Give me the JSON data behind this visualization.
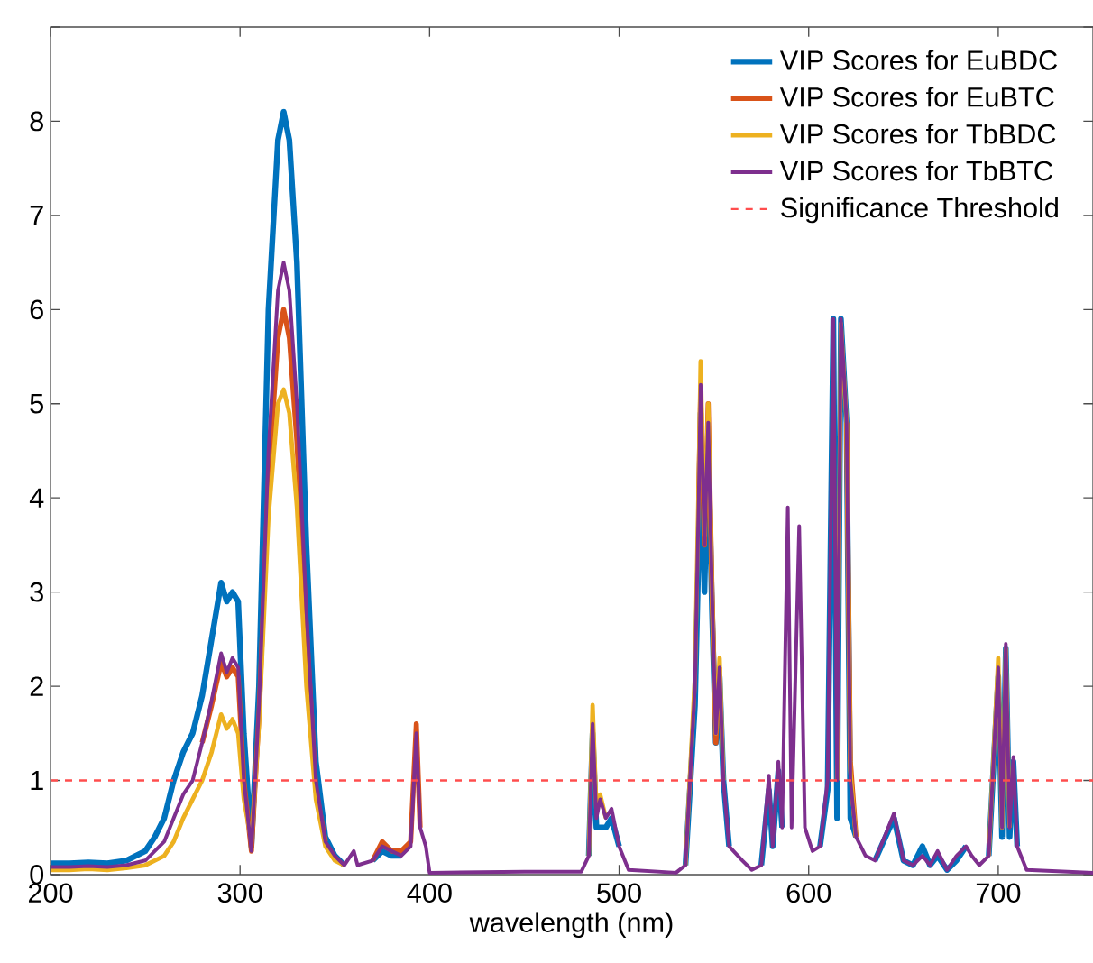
{
  "chart_data": {
    "type": "line",
    "xlabel": "wavelength (nm)",
    "x": [
      200,
      210,
      220,
      230,
      240,
      250,
      255,
      260,
      265,
      270,
      275,
      280,
      285,
      290,
      293,
      296,
      299,
      302,
      306,
      310,
      315,
      320,
      323,
      326,
      330,
      335,
      340,
      345,
      350,
      355,
      360,
      362,
      370,
      375,
      380,
      385,
      390,
      393,
      395,
      398,
      400,
      450,
      480,
      484,
      486,
      488,
      490,
      493,
      496,
      500,
      505,
      530,
      535,
      540,
      542,
      543,
      545,
      547,
      549,
      551,
      553,
      555,
      558,
      565,
      570,
      575,
      579,
      581,
      584,
      586,
      589,
      591,
      595,
      598,
      602,
      606,
      610,
      613,
      615,
      617,
      620,
      622,
      625,
      630,
      635,
      645,
      650,
      655,
      660,
      664,
      668,
      673,
      678,
      683,
      686,
      690,
      695,
      700,
      702,
      704,
      706,
      708,
      710,
      715,
      750
    ],
    "series": [
      {
        "name": "VIP Scores for EuBDC",
        "color": "#0072bd",
        "values": [
          0.12,
          0.12,
          0.13,
          0.12,
          0.15,
          0.25,
          0.4,
          0.6,
          1.0,
          1.3,
          1.5,
          1.9,
          2.5,
          3.1,
          2.9,
          3.0,
          2.9,
          1.5,
          0.3,
          2.0,
          6.0,
          7.8,
          8.1,
          7.8,
          6.5,
          3.5,
          1.2,
          0.4,
          0.2,
          0.1,
          null,
          null,
          0.15,
          0.25,
          0.2,
          0.2,
          null,
          null,
          null,
          null,
          null,
          null,
          null,
          0.2,
          1.5,
          0.5,
          0.5,
          0.5,
          0.6,
          0.3,
          null,
          null,
          0.1,
          1.8,
          3.5,
          4.9,
          3.0,
          4.6,
          2.8,
          1.4,
          2.1,
          1.0,
          0.3,
          null,
          null,
          0.1,
          0.9,
          0.3,
          1.1,
          0.5,
          null,
          null,
          null,
          null,
          null,
          0.3,
          0.9,
          5.9,
          0.6,
          5.9,
          4.8,
          0.6,
          0.4,
          null,
          0.15,
          0.6,
          0.15,
          0.1,
          0.3,
          0.1,
          0.2,
          0.05,
          0.15,
          0.3,
          null,
          null,
          0.2,
          2.1,
          0.4,
          2.4,
          0.4,
          1.2,
          0.3,
          null,
          null
        ]
      },
      {
        "name": "VIP Scores for EuBTC",
        "color": "#d95319",
        "values": [
          null,
          null,
          null,
          null,
          null,
          null,
          null,
          null,
          null,
          null,
          null,
          1.4,
          1.8,
          2.25,
          2.1,
          2.2,
          2.1,
          1.0,
          0.25,
          1.7,
          4.2,
          5.7,
          6.0,
          5.7,
          4.6,
          2.6,
          0.9,
          0.35,
          null,
          null,
          null,
          null,
          0.15,
          0.35,
          0.25,
          0.25,
          0.35,
          1.6,
          0.5,
          null,
          null,
          null,
          null,
          null,
          null,
          null,
          null,
          null,
          null,
          null,
          null,
          null,
          null,
          null,
          4.0,
          5.1,
          3.5,
          5.0,
          3.0,
          1.4,
          2.2,
          null,
          null,
          null,
          null,
          null,
          null,
          null,
          null,
          null,
          null,
          null,
          null,
          null,
          null,
          null,
          null,
          null,
          null,
          null,
          4.8,
          1.2,
          0.4,
          null,
          null,
          null,
          null,
          null,
          null,
          null,
          null,
          null,
          null,
          null,
          null,
          null,
          null,
          null,
          null,
          null,
          null,
          null,
          null,
          null,
          null
        ]
      },
      {
        "name": "VIP Scores for TbBDC",
        "color": "#edb120",
        "values": [
          0.05,
          0.05,
          0.06,
          0.05,
          0.07,
          0.1,
          0.15,
          0.2,
          0.35,
          0.6,
          0.8,
          1.0,
          1.3,
          1.7,
          1.55,
          1.65,
          1.5,
          0.8,
          0.35,
          1.6,
          3.8,
          5.0,
          5.15,
          4.9,
          3.9,
          2.0,
          0.8,
          0.3,
          0.15,
          0.1,
          null,
          null,
          null,
          null,
          null,
          null,
          null,
          null,
          null,
          null,
          null,
          null,
          null,
          0.2,
          1.8,
          0.7,
          0.85,
          0.6,
          null,
          null,
          null,
          null,
          0.1,
          2.1,
          4.2,
          5.45,
          3.6,
          5.0,
          3.0,
          1.5,
          2.3,
          1.0,
          null,
          null,
          null,
          null,
          null,
          null,
          null,
          null,
          null,
          null,
          null,
          null,
          null,
          null,
          null,
          null,
          1.0,
          5.85,
          4.8,
          1.1,
          0.4,
          null,
          null,
          null,
          null,
          null,
          null,
          null,
          null,
          null,
          null,
          null,
          null,
          null,
          0.2,
          2.3,
          0.5,
          2.4,
          0.5,
          null,
          null,
          null,
          null
        ]
      },
      {
        "name": "VIP Scores for TbBTC",
        "color": "#7e2f8e",
        "values": [
          0.08,
          0.08,
          0.09,
          0.08,
          0.1,
          0.15,
          0.25,
          0.35,
          0.6,
          0.85,
          1.0,
          1.4,
          1.85,
          2.35,
          2.15,
          2.3,
          2.2,
          1.0,
          0.25,
          1.8,
          4.5,
          6.2,
          6.5,
          6.2,
          5.0,
          2.8,
          1.0,
          0.35,
          0.2,
          0.1,
          0.25,
          0.1,
          0.15,
          0.3,
          0.25,
          0.2,
          0.3,
          1.5,
          0.5,
          0.3,
          0.02,
          0.03,
          0.03,
          0.2,
          1.6,
          0.6,
          0.8,
          0.6,
          0.7,
          0.3,
          0.05,
          0.02,
          0.1,
          2.0,
          4.0,
          5.2,
          3.5,
          4.8,
          3.0,
          1.5,
          2.2,
          1.0,
          0.3,
          0.15,
          0.05,
          0.1,
          1.05,
          0.3,
          1.2,
          0.5,
          3.9,
          0.5,
          3.7,
          0.5,
          0.25,
          0.3,
          1.0,
          5.9,
          1.0,
          5.9,
          4.8,
          1.0,
          0.4,
          0.2,
          0.15,
          0.65,
          0.15,
          0.1,
          0.2,
          0.1,
          0.25,
          0.05,
          0.2,
          0.3,
          0.2,
          0.1,
          0.2,
          2.2,
          0.5,
          2.45,
          0.5,
          1.25,
          0.3,
          0.05,
          0.02
        ]
      }
    ],
    "ref_lines": [
      {
        "axis": "y",
        "value": 1,
        "label": "Significance Threshold",
        "color": "#ff4d4d",
        "line_style": "dashed"
      }
    ],
    "xlim": [
      200,
      750
    ],
    "ylim": [
      0,
      9
    ],
    "xticks": [
      200,
      300,
      400,
      500,
      600,
      700
    ],
    "yticks": [
      0,
      1,
      2,
      3,
      4,
      5,
      6,
      7,
      8,
      {
        "value": 9,
        "label": null
      }
    ],
    "legend": "top right",
    "marker": "none",
    "line_style": "solid",
    "grid": false
  }
}
